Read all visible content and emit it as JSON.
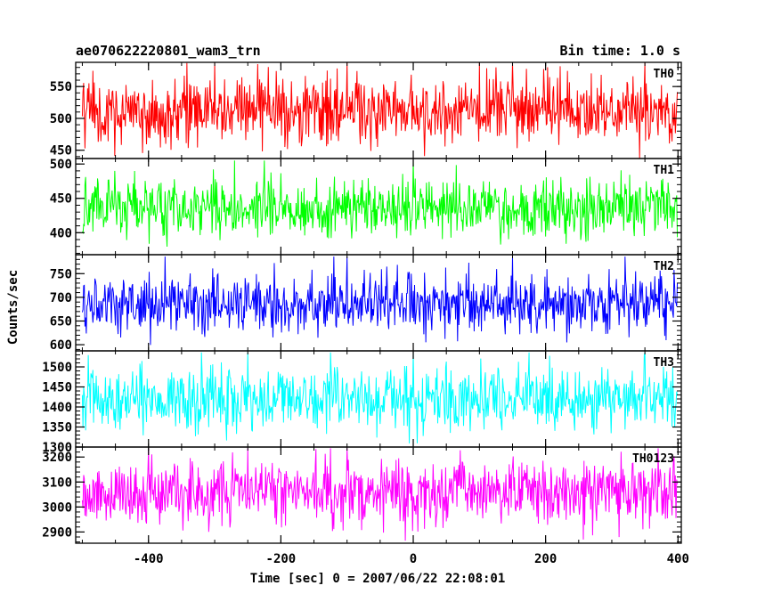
{
  "chart_data": {
    "type": "line",
    "title_left": "ae070622220801_wam3_trn",
    "title_right": "Bin time: 1.0 s",
    "xlabel": "Time [sec] 0 = 2007/06/22 22:08:01",
    "ylabel": "Counts/sec",
    "xlim": [
      -510,
      405
    ],
    "xticks": [
      -400,
      -200,
      0,
      200,
      400
    ],
    "x_range": [
      -500,
      399
    ],
    "grid": false,
    "panels": [
      {
        "name": "TH0",
        "color": "#ff0000",
        "ylim": [
          437,
          588
        ],
        "yticks": [
          450,
          500,
          550
        ],
        "mean": 512,
        "noise": 27,
        "peak_x": [
          -300,
          -100,
          100,
          150,
          350
        ],
        "peak_high": 588,
        "dip_low": 440
      },
      {
        "name": "TH1",
        "color": "#00ff00",
        "ylim": [
          368,
          508
        ],
        "yticks": [
          400,
          450,
          500
        ],
        "mean": 437,
        "noise": 22,
        "peak_x": [
          -270,
          -225,
          0,
          400
        ],
        "peak_high": 505,
        "dip_low": 371
      },
      {
        "name": "TH2",
        "color": "#0000ff",
        "ylim": [
          587,
          790
        ],
        "yticks": [
          600,
          650,
          700,
          750
        ],
        "mean": 686,
        "noise": 30,
        "peak_x": [
          -375,
          -120,
          -100,
          150,
          320
        ],
        "peak_high": 786,
        "dip_low": 590
      },
      {
        "name": "TH3",
        "color": "#00ffff",
        "ylim": [
          1300,
          1540
        ],
        "yticks": [
          1300,
          1350,
          1400,
          1450,
          1500
        ],
        "mean": 1420,
        "noise": 40,
        "peak_x": [
          -320,
          -250,
          -125,
          0,
          175,
          350
        ],
        "peak_high": 1536,
        "dip_low": 1302
      },
      {
        "name": "TH0123",
        "color": "#ff00ff",
        "ylim": [
          2855,
          3240
        ],
        "yticks": [
          2900,
          3000,
          3100,
          3200
        ],
        "mean": 3060,
        "noise": 65,
        "peak_x": [
          -400,
          -250,
          -125,
          -100,
          370
        ],
        "peak_high": 3235,
        "dip_low": 2860
      }
    ]
  }
}
